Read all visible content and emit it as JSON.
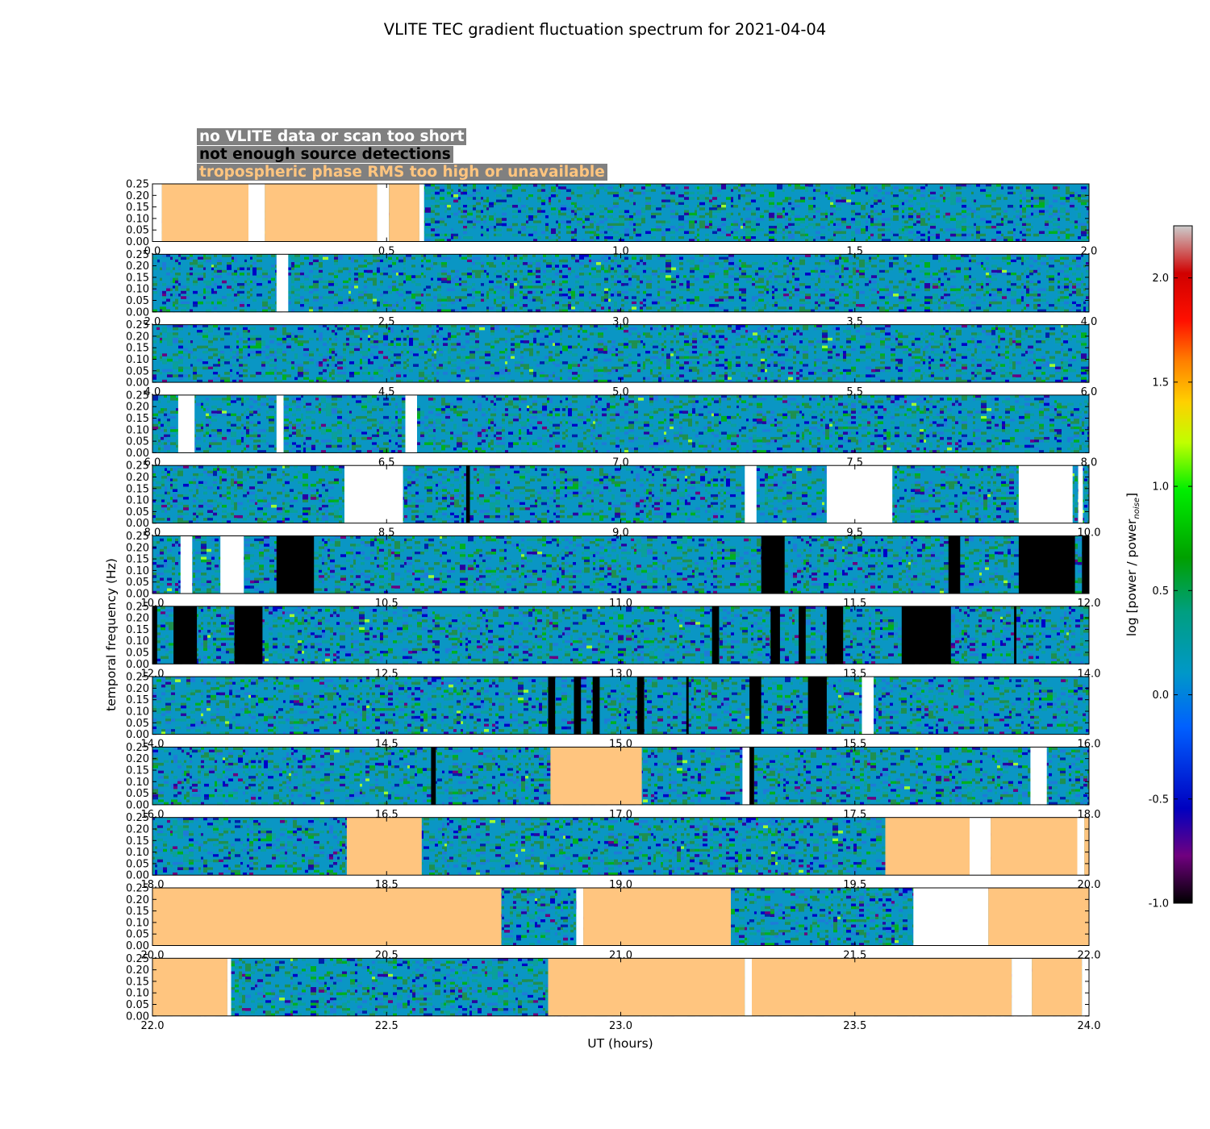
{
  "chart_data": {
    "type": "heatmap",
    "title": "VLITE TEC gradient fluctuation spectrum for 2021-04-04",
    "xlabel": "UT (hours)",
    "ylabel": "temporal frequency (Hz)",
    "ylim": [
      0.0,
      0.25
    ],
    "yticks": [
      "0.00",
      "0.05",
      "0.10",
      "0.15",
      "0.20",
      "0.25"
    ],
    "legend": [
      {
        "label": "no VLITE data or scan too short",
        "color": "#ffffff"
      },
      {
        "label": "not enough source detections",
        "color": "#000000"
      },
      {
        "label": "tropospheric phase RMS too high or unavailable",
        "color": "#ffc57f"
      }
    ],
    "colorbar": {
      "label_main": "log [power / power",
      "label_sub": "noise",
      "label_end": "]",
      "range": [
        -1.0,
        2.25
      ],
      "ticks": [
        "-1.0",
        "-0.5",
        "0.0",
        "0.5",
        "1.0",
        "1.5",
        "2.0"
      ]
    },
    "panels": [
      {
        "xrange": [
          0,
          2
        ],
        "xticks": [
          "0.0",
          "0.5",
          "1.0",
          "1.5",
          "2.0"
        ],
        "masks": [
          {
            "start": 0.0,
            "end": 0.02,
            "type": "nodata"
          },
          {
            "start": 0.02,
            "end": 0.205,
            "type": "tropo"
          },
          {
            "start": 0.205,
            "end": 0.24,
            "type": "nodata"
          },
          {
            "start": 0.24,
            "end": 0.48,
            "type": "tropo"
          },
          {
            "start": 0.48,
            "end": 0.505,
            "type": "nodata"
          },
          {
            "start": 0.505,
            "end": 0.57,
            "type": "tropo"
          },
          {
            "start": 0.57,
            "end": 0.58,
            "type": "nodata"
          }
        ]
      },
      {
        "xrange": [
          2,
          4
        ],
        "xticks": [
          "2.0",
          "2.5",
          "3.0",
          "3.5",
          "4.0"
        ],
        "masks": [
          {
            "start": 2.265,
            "end": 2.29,
            "type": "nodata"
          }
        ]
      },
      {
        "xrange": [
          4,
          6
        ],
        "xticks": [
          "4.0",
          "4.5",
          "5.0",
          "5.5",
          "6.0"
        ],
        "masks": []
      },
      {
        "xrange": [
          6,
          8
        ],
        "xticks": [
          "6.0",
          "6.5",
          "7.0",
          "7.5",
          "8.0"
        ],
        "masks": [
          {
            "start": 6.055,
            "end": 6.09,
            "type": "nodata"
          },
          {
            "start": 6.265,
            "end": 6.28,
            "type": "nodata"
          },
          {
            "start": 6.54,
            "end": 6.565,
            "type": "nodata"
          }
        ]
      },
      {
        "xrange": [
          8,
          10
        ],
        "xticks": [
          "8.0",
          "8.5",
          "9.0",
          "9.5",
          "10.0"
        ],
        "masks": [
          {
            "start": 8.41,
            "end": 8.535,
            "type": "nodata"
          },
          {
            "start": 8.67,
            "end": 8.678,
            "type": "nolow"
          },
          {
            "start": 9.265,
            "end": 9.29,
            "type": "nodata"
          },
          {
            "start": 9.44,
            "end": 9.58,
            "type": "nodata"
          },
          {
            "start": 9.85,
            "end": 9.965,
            "type": "nodata"
          },
          {
            "start": 9.977,
            "end": 9.987,
            "type": "nodata"
          }
        ]
      },
      {
        "xrange": [
          10,
          12
        ],
        "xticks": [
          "10.0",
          "10.5",
          "11.0",
          "11.5",
          "12.0"
        ],
        "masks": [
          {
            "start": 10.06,
            "end": 10.085,
            "type": "nodata"
          },
          {
            "start": 10.145,
            "end": 10.195,
            "type": "nodata"
          },
          {
            "start": 10.265,
            "end": 10.345,
            "type": "nolow"
          },
          {
            "start": 11.3,
            "end": 11.35,
            "type": "nolow"
          },
          {
            "start": 11.7,
            "end": 11.725,
            "type": "nolow"
          },
          {
            "start": 11.85,
            "end": 11.97,
            "type": "nolow"
          },
          {
            "start": 11.985,
            "end": 12.0,
            "type": "nolow"
          }
        ]
      },
      {
        "xrange": [
          12,
          14
        ],
        "xticks": [
          "12.0",
          "12.5",
          "13.0",
          "13.5",
          "14.0"
        ],
        "masks": [
          {
            "start": 12.0,
            "end": 12.01,
            "type": "nolow"
          },
          {
            "start": 12.045,
            "end": 12.095,
            "type": "nolow"
          },
          {
            "start": 12.175,
            "end": 12.235,
            "type": "nolow"
          },
          {
            "start": 13.195,
            "end": 13.21,
            "type": "nolow"
          },
          {
            "start": 13.32,
            "end": 13.34,
            "type": "nolow"
          },
          {
            "start": 13.38,
            "end": 13.395,
            "type": "nolow"
          },
          {
            "start": 13.44,
            "end": 13.475,
            "type": "nolow"
          },
          {
            "start": 13.6,
            "end": 13.705,
            "type": "nolow"
          },
          {
            "start": 13.84,
            "end": 13.845,
            "type": "nolow"
          }
        ]
      },
      {
        "xrange": [
          14,
          16
        ],
        "xticks": [
          "14.0",
          "14.5",
          "15.0",
          "15.5",
          "16.0"
        ],
        "masks": [
          {
            "start": 14.845,
            "end": 14.86,
            "type": "nolow"
          },
          {
            "start": 14.9,
            "end": 14.915,
            "type": "nolow"
          },
          {
            "start": 14.94,
            "end": 14.955,
            "type": "nolow"
          },
          {
            "start": 15.035,
            "end": 15.05,
            "type": "nolow"
          },
          {
            "start": 15.14,
            "end": 15.145,
            "type": "nolow"
          },
          {
            "start": 15.275,
            "end": 15.3,
            "type": "nolow"
          },
          {
            "start": 15.4,
            "end": 15.44,
            "type": "nolow"
          },
          {
            "start": 15.515,
            "end": 15.54,
            "type": "nodata"
          }
        ]
      },
      {
        "xrange": [
          16,
          18
        ],
        "xticks": [
          "16.0",
          "16.5",
          "17.0",
          "17.5",
          "18.0"
        ],
        "masks": [
          {
            "start": 16.595,
            "end": 16.605,
            "type": "nolow"
          },
          {
            "start": 16.85,
            "end": 17.045,
            "type": "tropo"
          },
          {
            "start": 17.26,
            "end": 17.285,
            "type": "nodata"
          },
          {
            "start": 17.275,
            "end": 17.285,
            "type": "nolow"
          },
          {
            "start": 17.875,
            "end": 17.91,
            "type": "nodata"
          }
        ]
      },
      {
        "xrange": [
          18,
          20
        ],
        "xticks": [
          "18.0",
          "18.5",
          "19.0",
          "19.5",
          "20.0"
        ],
        "masks": [
          {
            "start": 18.415,
            "end": 18.575,
            "type": "tropo"
          },
          {
            "start": 19.565,
            "end": 19.745,
            "type": "tropo"
          },
          {
            "start": 19.745,
            "end": 19.79,
            "type": "nodata"
          },
          {
            "start": 19.79,
            "end": 19.975,
            "type": "tropo"
          },
          {
            "start": 19.975,
            "end": 19.99,
            "type": "nodata"
          },
          {
            "start": 19.99,
            "end": 20.0,
            "type": "tropo"
          }
        ]
      },
      {
        "xrange": [
          20,
          22
        ],
        "xticks": [
          "20.0",
          "20.5",
          "21.0",
          "21.5",
          "22.0"
        ],
        "masks": [
          {
            "start": 20.0,
            "end": 20.745,
            "type": "tropo"
          },
          {
            "start": 20.905,
            "end": 20.92,
            "type": "nodata"
          },
          {
            "start": 20.92,
            "end": 21.235,
            "type": "tropo"
          },
          {
            "start": 21.625,
            "end": 21.785,
            "type": "nodata"
          },
          {
            "start": 21.785,
            "end": 22.0,
            "type": "tropo"
          }
        ]
      },
      {
        "xrange": [
          22,
          24
        ],
        "xticks": [
          "22.0",
          "22.5",
          "23.0",
          "23.5",
          "24.0"
        ],
        "masks": [
          {
            "start": 22.0,
            "end": 22.16,
            "type": "tropo"
          },
          {
            "start": 22.16,
            "end": 22.168,
            "type": "nodata"
          },
          {
            "start": 22.845,
            "end": 23.265,
            "type": "tropo"
          },
          {
            "start": 23.265,
            "end": 23.28,
            "type": "nodata"
          },
          {
            "start": 23.28,
            "end": 23.835,
            "type": "tropo"
          },
          {
            "start": 23.835,
            "end": 23.878,
            "type": "nodata"
          },
          {
            "start": 23.878,
            "end": 23.985,
            "type": "tropo"
          },
          {
            "start": 23.985,
            "end": 24.0,
            "type": "nodata"
          }
        ]
      }
    ]
  }
}
